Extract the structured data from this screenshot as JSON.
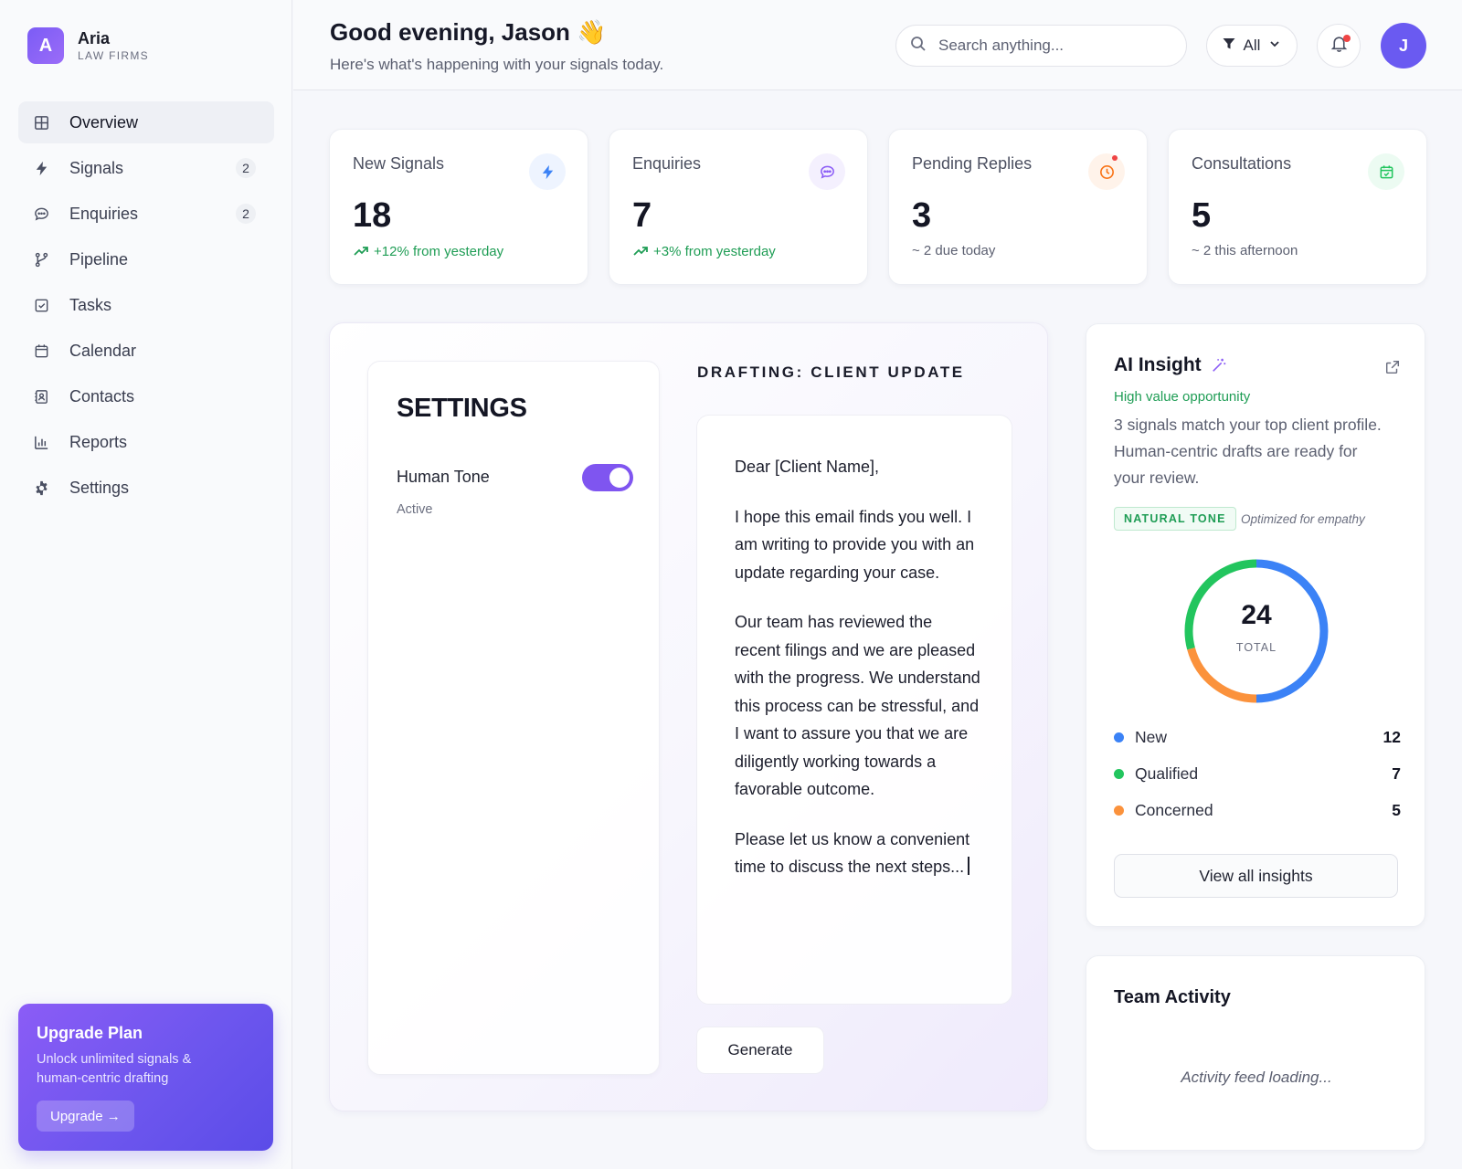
{
  "brand": {
    "logo_letter": "A",
    "name": "Aria",
    "subtitle": "LAW FIRMS"
  },
  "nav": {
    "items": [
      {
        "label": "Overview",
        "icon": "grid-icon",
        "active": true
      },
      {
        "label": "Signals",
        "icon": "bolt-icon",
        "badge": "2"
      },
      {
        "label": "Enquiries",
        "icon": "chat-icon",
        "badge": "2"
      },
      {
        "label": "Pipeline",
        "icon": "branch-icon"
      },
      {
        "label": "Tasks",
        "icon": "checkbox-icon"
      },
      {
        "label": "Calendar",
        "icon": "calendar-icon"
      },
      {
        "label": "Contacts",
        "icon": "contacts-icon"
      },
      {
        "label": "Reports",
        "icon": "bar-chart-icon"
      },
      {
        "label": "Settings",
        "icon": "gear-icon"
      }
    ]
  },
  "upgrade": {
    "title": "Upgrade Plan",
    "text": "Unlock unlimited signals & human-centric drafting",
    "button": "Upgrade →"
  },
  "header": {
    "greeting": "Good evening, Jason 👋",
    "subtitle": "Here's what's happening with your signals today.",
    "search_placeholder": "Search anything...",
    "filter_label": "All",
    "avatar_initial": "J"
  },
  "stats": [
    {
      "label": "New Signals",
      "value": "18",
      "delta": "+12% from yesterday",
      "trend": "up",
      "icon": "bolt-icon",
      "color": "#3b82f6",
      "bg": "#eef4ff"
    },
    {
      "label": "Enquiries",
      "value": "7",
      "delta": "+3% from yesterday",
      "trend": "up",
      "icon": "chat-icon",
      "color": "#8b5cf6",
      "bg": "#f4f0fe"
    },
    {
      "label": "Pending Replies",
      "value": "3",
      "delta": "~ 2 due today",
      "trend": "neutral",
      "icon": "clock-icon",
      "color": "#f97316",
      "bg": "#fff3ea"
    },
    {
      "label": "Consultations",
      "value": "5",
      "delta": "~ 2 this afternoon",
      "trend": "neutral",
      "icon": "calendar-check-icon",
      "color": "#22c55e",
      "bg": "#ecfbf2"
    }
  ],
  "settings": {
    "title": "SETTINGS",
    "tone_label": "Human Tone",
    "tone_status": "Active",
    "tone_enabled": true
  },
  "draft": {
    "heading": "DRAFTING: CLIENT UPDATE",
    "salutation": "Dear [Client Name],",
    "paragraphs": [
      "I hope this email finds you well. I am writing to provide you with an update regarding your case.",
      "Our team has reviewed the recent filings and we are pleased with the progress. We understand this process can be stressful, and I want to assure you that we are diligently working towards a favorable outcome.",
      "Please let us know a convenient time to discuss the next steps..."
    ],
    "generate_label": "Generate"
  },
  "insight": {
    "title": "AI Insight",
    "tag": "High value opportunity",
    "text": "3 signals match your top client profile. Human-centric drafts are ready for your review.",
    "pill": "NATURAL TONE",
    "pill_note": "Optimized for empathy",
    "total_value": "24",
    "total_label": "TOTAL",
    "view_all": "View all insights"
  },
  "chart_data": {
    "type": "pie",
    "categories": [
      "New",
      "Qualified",
      "Concerned"
    ],
    "values": [
      12,
      7,
      5
    ],
    "colors": [
      "#3b82f6",
      "#22c55e",
      "#fb923c"
    ],
    "total": 24
  },
  "team": {
    "title": "Team Activity",
    "loading": "Activity feed loading..."
  }
}
